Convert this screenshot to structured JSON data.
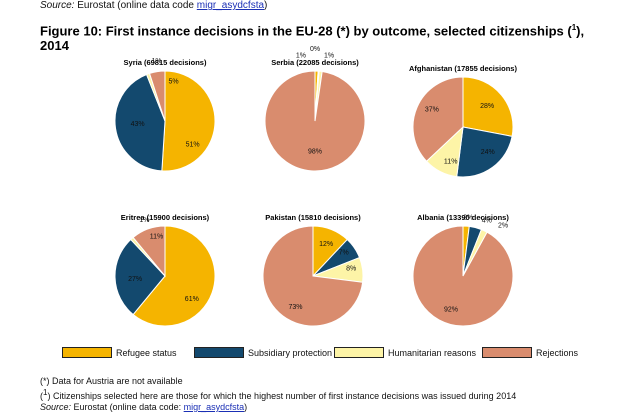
{
  "source_top": {
    "prefix": "Source:",
    "text": "Eurostat (online data code",
    "code": "migr_asydcfsta",
    "suffix": ")"
  },
  "figure_title": {
    "main": "Figure 10: First instance decisions in the EU-28 (*) by outcome, selected citizenships (",
    "sup": "1",
    "tail": "),",
    "line2": "2014"
  },
  "colors": {
    "refugee": "#f5b400",
    "subsidiary": "#13496e",
    "humanitarian": "#fdf4a7",
    "rejections": "#d98c6e"
  },
  "legend": [
    {
      "key": "refugee",
      "label": "Refugee status"
    },
    {
      "key": "subsidiary",
      "label": "Subsidiary protection"
    },
    {
      "key": "humanitarian",
      "label": "Humanitarian reasons"
    },
    {
      "key": "rejections",
      "label": "Rejections"
    }
  ],
  "chart_data": [
    {
      "type": "pie",
      "title": "Syria (69815 decisions)",
      "slices": [
        {
          "key": "refugee",
          "value": 51,
          "label": "51%"
        },
        {
          "key": "subsidiary",
          "value": 43,
          "label": "43%"
        },
        {
          "key": "humanitarian",
          "value": 1,
          "label": "1%"
        },
        {
          "key": "rejections",
          "value": 5,
          "label": "5%"
        }
      ]
    },
    {
      "type": "pie",
      "title": "Serbia (22085 decisions)",
      "slices": [
        {
          "key": "refugee",
          "value": 1,
          "label": "1%"
        },
        {
          "key": "subsidiary",
          "value": 0.3,
          "label": "0%"
        },
        {
          "key": "humanitarian",
          "value": 1,
          "label": "1%"
        },
        {
          "key": "rejections",
          "value": 98,
          "label": "98%"
        }
      ]
    },
    {
      "type": "pie",
      "title": "Afghanistan (17855 decisions)",
      "slices": [
        {
          "key": "refugee",
          "value": 28,
          "label": "28%"
        },
        {
          "key": "subsidiary",
          "value": 24,
          "label": "24%"
        },
        {
          "key": "humanitarian",
          "value": 11,
          "label": "11%"
        },
        {
          "key": "rejections",
          "value": 37,
          "label": "37%"
        }
      ]
    },
    {
      "type": "pie",
      "title": "Eritrea (15900 decisions)",
      "slices": [
        {
          "key": "refugee",
          "value": 61,
          "label": "61%"
        },
        {
          "key": "subsidiary",
          "value": 27,
          "label": "27%"
        },
        {
          "key": "humanitarian",
          "value": 1,
          "label": "1%"
        },
        {
          "key": "rejections",
          "value": 11,
          "label": "11%"
        }
      ]
    },
    {
      "type": "pie",
      "title": "Pakistan (15810 decisions)",
      "slices": [
        {
          "key": "refugee",
          "value": 12,
          "label": "12%"
        },
        {
          "key": "subsidiary",
          "value": 7,
          "label": "7%"
        },
        {
          "key": "humanitarian",
          "value": 8,
          "label": "8%"
        },
        {
          "key": "rejections",
          "value": 73,
          "label": "73%"
        }
      ]
    },
    {
      "type": "pie",
      "title": "Albania (13390 decisions)",
      "slices": [
        {
          "key": "refugee",
          "value": 2,
          "label": "2%"
        },
        {
          "key": "subsidiary",
          "value": 4,
          "label": "4%"
        },
        {
          "key": "humanitarian",
          "value": 2,
          "label": "2%"
        },
        {
          "key": "rejections",
          "value": 92,
          "label": "92%"
        }
      ]
    }
  ],
  "notes": {
    "note1": "(*) Data for Austria are not available",
    "note2_open": "(",
    "note2_sup": "1",
    "note2_text": ") Citizenships selected here are those for which the highest number of first instance decisions was issued during 2014",
    "source_prefix": "Source:",
    "source_text": "Eurostat (online data code:",
    "source_code": "migr_asydcfsta",
    "source_suffix": ")"
  }
}
